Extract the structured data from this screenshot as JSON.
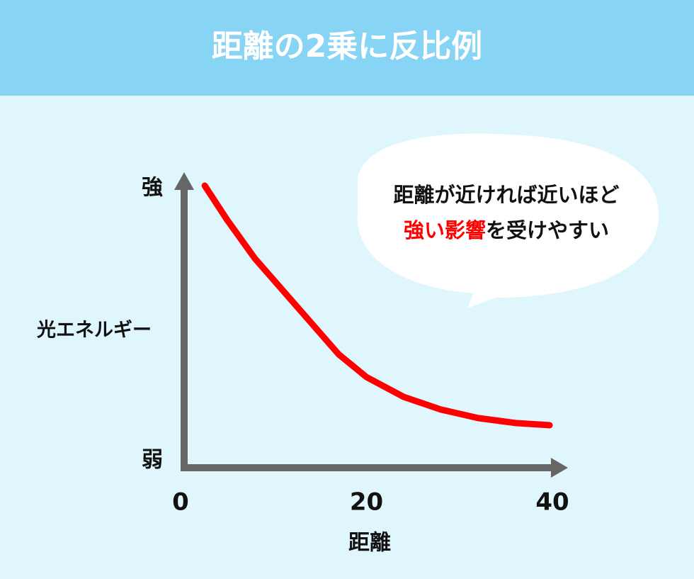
{
  "chart_data": {
    "type": "line",
    "title": "距離の2乗に反比例",
    "annotation": {
      "line1": "距離が近ければ近いほど",
      "line2_highlight": "強い影響",
      "line2_rest": "を受けやすい"
    },
    "x_label": "距離",
    "y_label": "光エネルギー",
    "x": [
      2.6,
      5,
      8,
      11,
      14,
      17,
      20,
      24,
      28,
      32,
      36,
      39.7
    ],
    "series": [
      {
        "color": "#ff0000",
        "values": [
          100,
          87.6,
          73.5,
          61.9,
          50.3,
          38.7,
          30.4,
          23.2,
          18.6,
          15.5,
          13.7,
          12.9
        ]
      }
    ],
    "xlim": [
      0,
      40
    ],
    "xticks": [
      0,
      20,
      40
    ],
    "ylim": [
      0,
      100
    ],
    "yticks": [
      {
        "value": 0,
        "label": "弱"
      },
      {
        "value": 100,
        "label": "強"
      }
    ],
    "highlight_color": "#ff0000"
  }
}
